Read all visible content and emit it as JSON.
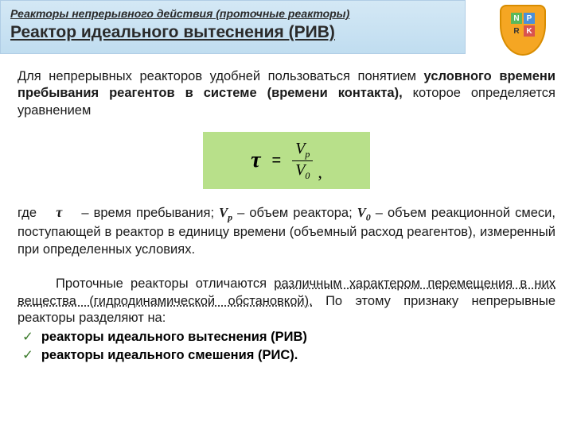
{
  "header": {
    "top": "Реакторы непрерывного действия (проточные реакторы)",
    "main": "Реактор идеального вытеснения (РИВ)"
  },
  "logo": {
    "letters": [
      "N",
      "P",
      "R",
      "K"
    ]
  },
  "para1": {
    "lead": "   Для непрерывных реакторов удобней пользоваться понятием ",
    "bold": "условного времени пребывания реагентов в системе (времени контакта),",
    "tail": " которое определяется уравнением"
  },
  "formula": {
    "tau": "τ",
    "eq": "=",
    "num_v": "V",
    "num_sub": "р",
    "den_v": "V",
    "den_sub": "0",
    "comma": ","
  },
  "para2": {
    "t1": "где ",
    "tau": "τ",
    "t2": " – время пребывания; ",
    "v1": "V",
    "s1": "р",
    "t3": " – объем реактора; ",
    "v2": "V",
    "s2": "0",
    "t4": " – объем реакционной смеси, поступающей в реактор в единицу времени (объемный расход реагентов), измеренный при определенных условиях."
  },
  "para3": {
    "t1": "Проточные реакторы отличаются ",
    "d1": "различным характером перемещения в них вещества (гидродинамической обстановкой).",
    "t2": " По этому признаку непрерывные реакторы разделяют на:"
  },
  "list": {
    "item1": "реакторы идеального вытеснения (РИВ)",
    "item2": "реакторы идеального смешения (РИС)."
  },
  "colors": {
    "header_bg_top": "#d4e8f5",
    "header_bg_bottom": "#c0ddf0",
    "formula_bg": "#b8e08a",
    "shield_bg": "#f5a623",
    "check_color": "#3a7a2a"
  }
}
